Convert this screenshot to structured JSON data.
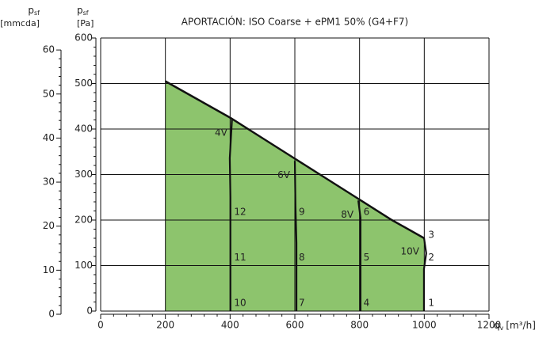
{
  "chart_data": {
    "type": "area",
    "title": "APORTACIÓN: ISO Coarse + ePM1 50% (G4+F7)",
    "xlabel": {
      "symbol": "q",
      "subscript": "v",
      "unit": "[m³/h]"
    },
    "ylabel": {
      "symbol": "p",
      "subscript": "sf",
      "unit": "[Pa]"
    },
    "y2label": {
      "symbol": "p",
      "subscript": "sf",
      "unit": "[mmcda]"
    },
    "xlim": [
      0,
      1200
    ],
    "xticks": [
      0,
      200,
      400,
      600,
      800,
      1000,
      1200
    ],
    "ylim": [
      0,
      600
    ],
    "yticks": [
      0,
      100,
      200,
      300,
      400,
      500,
      600
    ],
    "y2lim": [
      0,
      62
    ],
    "y2ticks": [
      0,
      10,
      20,
      30,
      40,
      50,
      60
    ],
    "grid": true,
    "envelope": {
      "color": "#8dc46d",
      "x": [
        200,
        300,
        400,
        500,
        600,
        700,
        800,
        900,
        1000
      ],
      "values": [
        505,
        465,
        425,
        380,
        335,
        290,
        245,
        200,
        160
      ]
    },
    "curves": [
      {
        "name": "4V",
        "x": [
          406,
          399,
          401,
          401
        ],
        "values": [
          423,
          336,
          250,
          0
        ]
      },
      {
        "name": "6V",
        "x": [
          600,
          602,
          605,
          605
        ],
        "values": [
          330,
          231,
          150,
          0
        ]
      },
      {
        "name": "8V",
        "x": [
          796,
          803,
          803,
          803
        ],
        "values": [
          243,
          205,
          120,
          0
        ]
      },
      {
        "name": "10V",
        "x": [
          999,
          1006,
          999,
          999
        ],
        "values": [
          162,
          127,
          92,
          0
        ]
      }
    ],
    "points": [
      {
        "label": "1",
        "x": 1000,
        "y": 0
      },
      {
        "label": "2",
        "x": 1000,
        "y": 100
      },
      {
        "label": "3",
        "x": 1000,
        "y": 150
      },
      {
        "label": "4",
        "x": 800,
        "y": 0
      },
      {
        "label": "5",
        "x": 800,
        "y": 100
      },
      {
        "label": "6",
        "x": 800,
        "y": 200
      },
      {
        "label": "7",
        "x": 600,
        "y": 0
      },
      {
        "label": "8",
        "x": 600,
        "y": 100
      },
      {
        "label": "9",
        "x": 600,
        "y": 200
      },
      {
        "label": "10",
        "x": 400,
        "y": 0
      },
      {
        "label": "11",
        "x": 400,
        "y": 100
      },
      {
        "label": "12",
        "x": 400,
        "y": 200
      }
    ]
  }
}
